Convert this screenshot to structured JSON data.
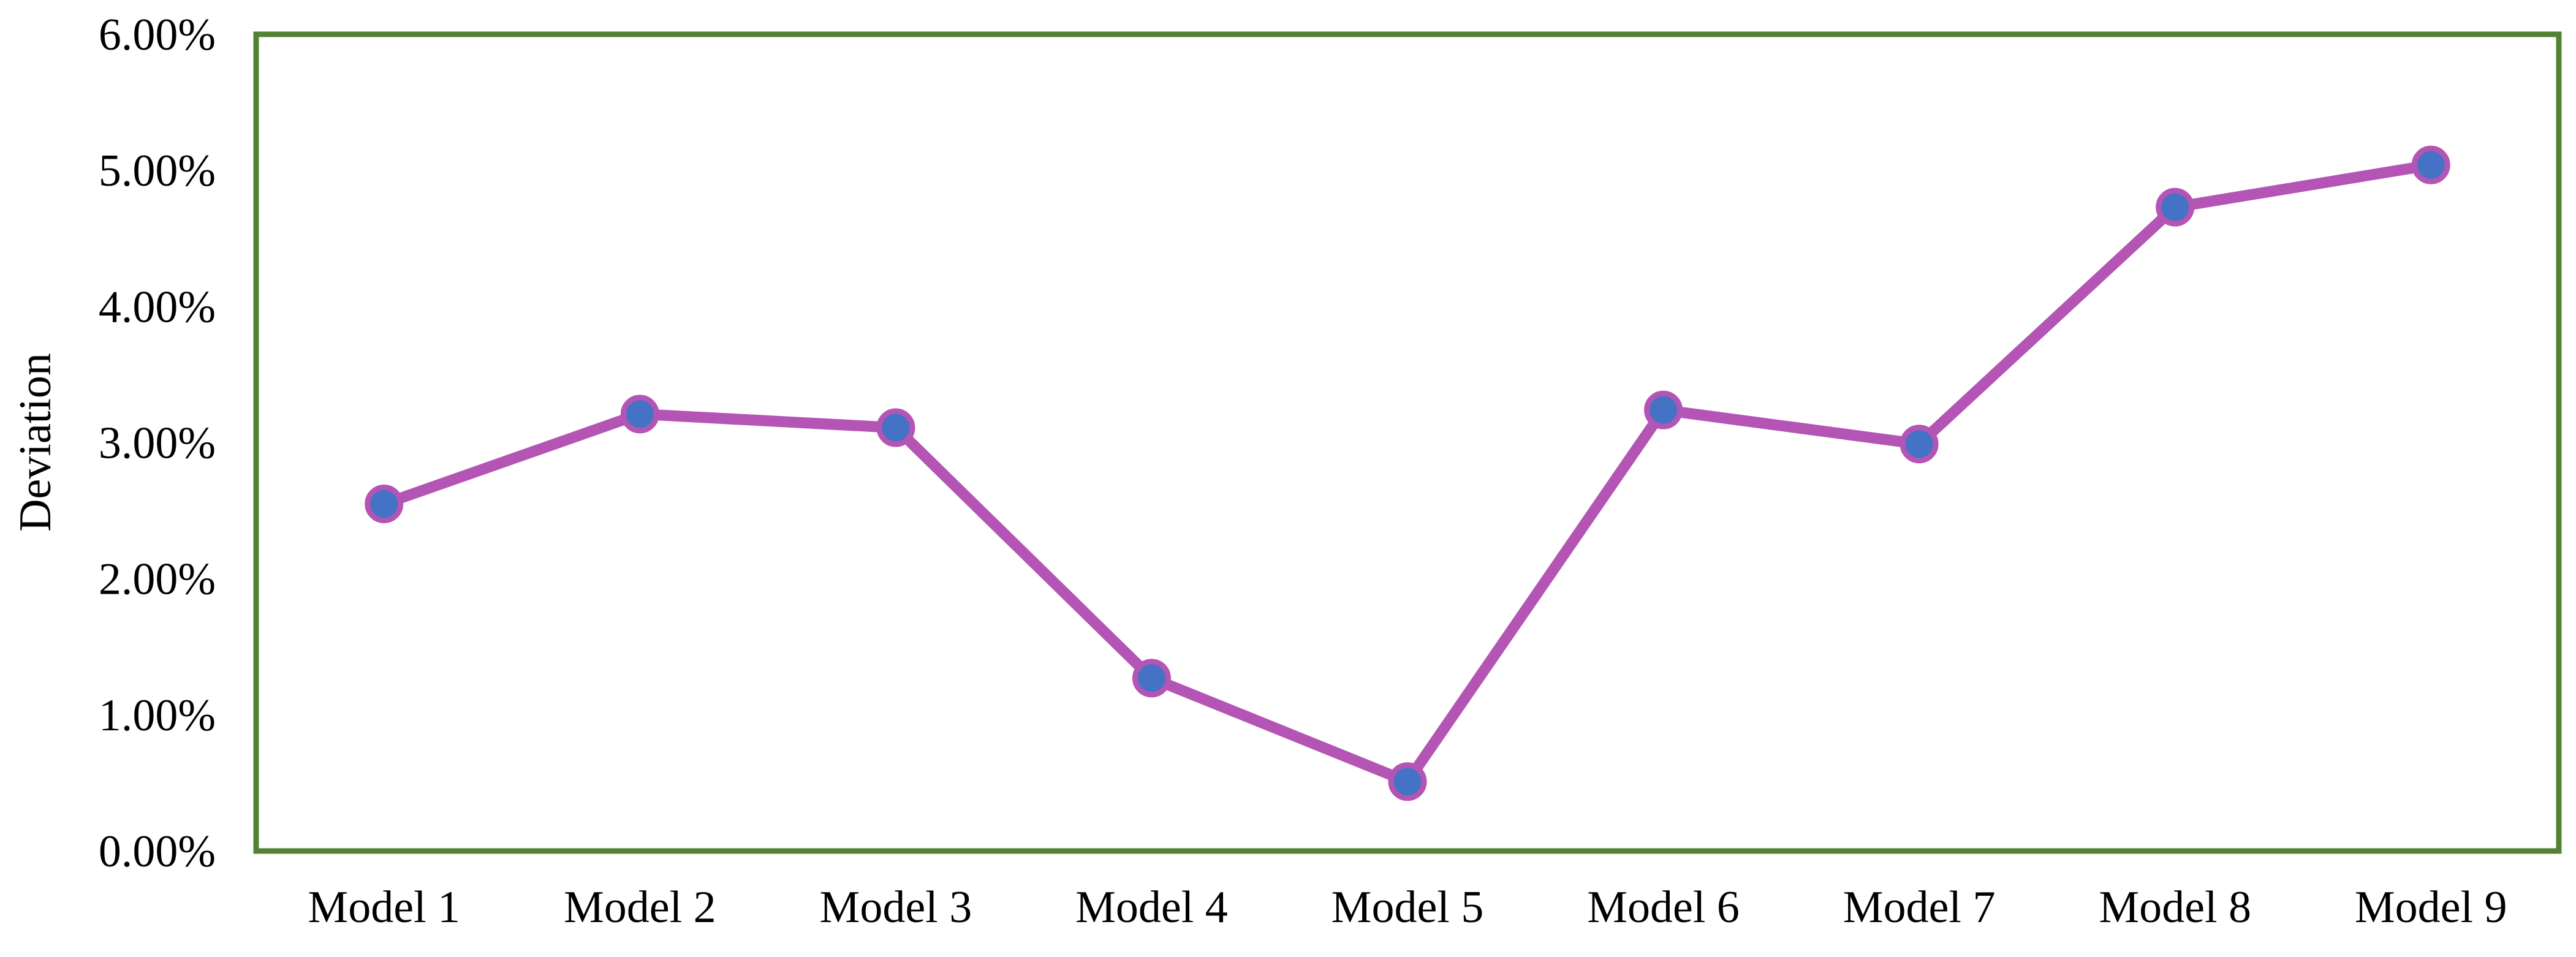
{
  "colors": {
    "plot_border": "#548235",
    "line": "#B455B6",
    "marker_fill": "#4472C4",
    "marker_edge": "#B455B6"
  },
  "chart_data": {
    "type": "line",
    "title": "",
    "xlabel": "",
    "ylabel": "Deviation",
    "categories": [
      "Model 1",
      "Model 2",
      "Model 3",
      "Model 4",
      "Model 5",
      "Model 6",
      "Model 7",
      "Model 8",
      "Model 9"
    ],
    "values": [
      2.55,
      3.21,
      3.11,
      1.27,
      0.51,
      3.24,
      2.99,
      4.73,
      5.04
    ],
    "ylim": [
      0,
      6
    ],
    "y_ticks": [
      0,
      1,
      2,
      3,
      4,
      5,
      6
    ],
    "y_tick_labels": [
      "0.00%",
      "1.00%",
      "2.00%",
      "3.00%",
      "4.00%",
      "5.00%",
      "6.00%"
    ],
    "grid": false,
    "legend": "none",
    "markers": "circle"
  }
}
